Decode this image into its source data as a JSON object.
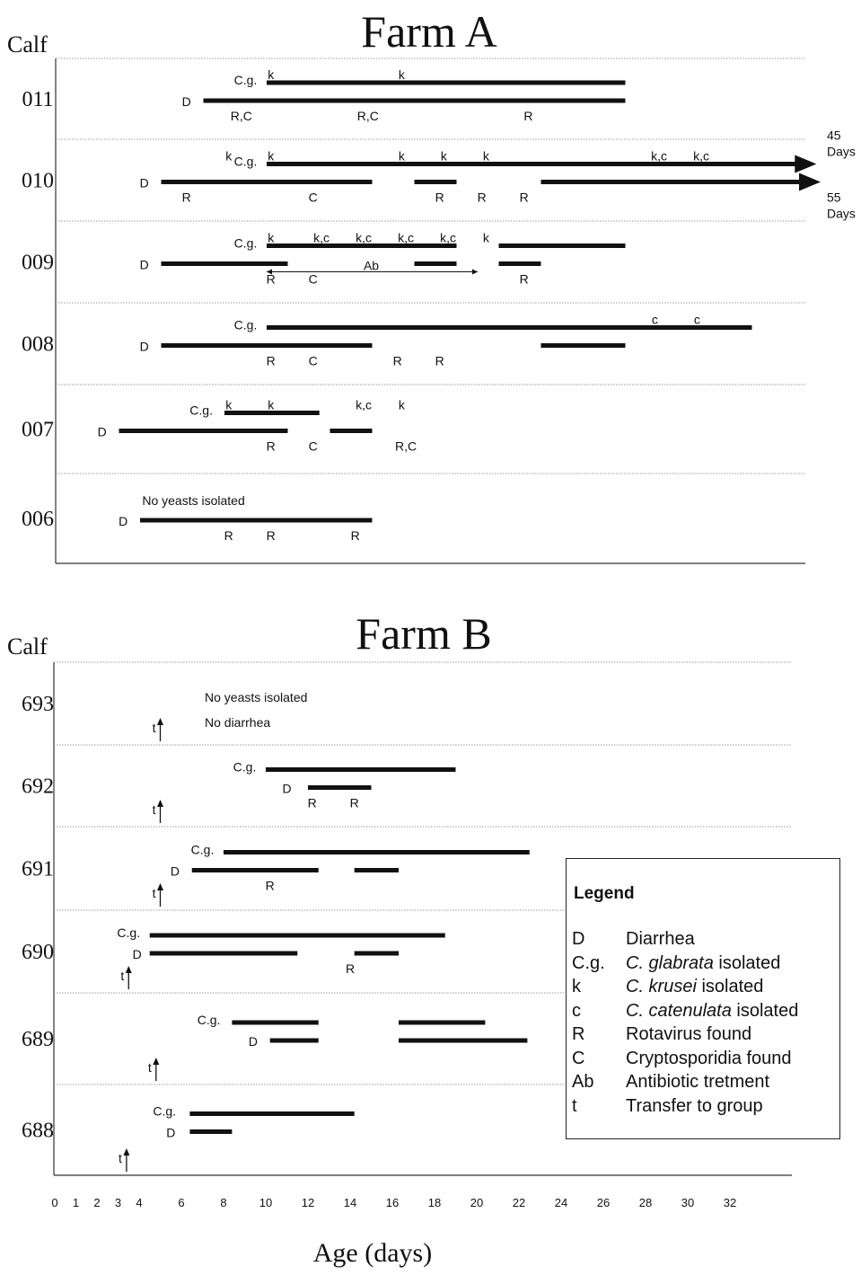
{
  "chart_data": [
    {
      "type": "timeline",
      "title": "Farm A",
      "row_axis_label": "Calf",
      "xlabel": "Age (days)",
      "calves": [
        {
          "id": "011",
          "bars": [
            {
              "series": "C.g.",
              "start": 10,
              "end": 27
            },
            {
              "series": "D",
              "start": 7,
              "end": 27
            }
          ],
          "labels": [
            {
              "text": "C.g.",
              "x": 9.0,
              "lane": "cg-label"
            },
            {
              "text": "D",
              "x": 6.2,
              "lane": "d-label"
            },
            {
              "text": "k",
              "x": 10.2,
              "lane": "top"
            },
            {
              "text": "k",
              "x": 16.4,
              "lane": "top"
            },
            {
              "text": "R,C",
              "x": 8.8,
              "lane": "bottom"
            },
            {
              "text": "R,C",
              "x": 14.8,
              "lane": "bottom"
            },
            {
              "text": "R",
              "x": 22.4,
              "lane": "bottom"
            }
          ]
        },
        {
          "id": "010",
          "bars": [
            {
              "series": "C.g.",
              "start": 10,
              "end": 35.8,
              "arrow": true
            },
            {
              "series": "D",
              "start": 5,
              "end": 15
            },
            {
              "series": "D",
              "start": 17,
              "end": 19
            },
            {
              "series": "D",
              "start": 23,
              "end": 36,
              "arrow": true
            }
          ],
          "labels": [
            {
              "text": "C.g.",
              "x": 9.0,
              "lane": "cg-label"
            },
            {
              "text": "D",
              "x": 4.2,
              "lane": "d-label"
            },
            {
              "text": "k",
              "x": 8.2,
              "lane": "top"
            },
            {
              "text": "k",
              "x": 10.2,
              "lane": "top"
            },
            {
              "text": "k",
              "x": 16.4,
              "lane": "top"
            },
            {
              "text": "k",
              "x": 18.4,
              "lane": "top"
            },
            {
              "text": "k",
              "x": 20.4,
              "lane": "top"
            },
            {
              "text": "k,c",
              "x": 28.6,
              "lane": "top"
            },
            {
              "text": "k,c",
              "x": 30.6,
              "lane": "top"
            },
            {
              "text": "R",
              "x": 6.2,
              "lane": "bottom"
            },
            {
              "text": "C",
              "x": 12.2,
              "lane": "bottom"
            },
            {
              "text": "R",
              "x": 18.2,
              "lane": "bottom"
            },
            {
              "text": "R",
              "x": 20.2,
              "lane": "bottom"
            },
            {
              "text": "R",
              "x": 22.2,
              "lane": "bottom"
            }
          ],
          "end_notes": [
            {
              "value": "45",
              "unit": "Days",
              "lane": "cg"
            },
            {
              "value": "55",
              "unit": "Days",
              "lane": "d"
            }
          ]
        },
        {
          "id": "009",
          "bars": [
            {
              "series": "C.g.",
              "start": 10,
              "end": 19
            },
            {
              "series": "C.g.",
              "start": 21,
              "end": 27
            },
            {
              "series": "D",
              "start": 5,
              "end": 11
            },
            {
              "series": "D",
              "start": 17,
              "end": 19
            },
            {
              "series": "D",
              "start": 21,
              "end": 23
            }
          ],
          "antibiotic": {
            "label": "Ab",
            "start": 10,
            "end": 20
          },
          "labels": [
            {
              "text": "C.g.",
              "x": 9.0,
              "lane": "cg-label"
            },
            {
              "text": "D",
              "x": 4.2,
              "lane": "d-label"
            },
            {
              "text": "k",
              "x": 10.2,
              "lane": "top"
            },
            {
              "text": "k,c",
              "x": 12.6,
              "lane": "top"
            },
            {
              "text": "k,c",
              "x": 14.6,
              "lane": "top"
            },
            {
              "text": "k,c",
              "x": 16.6,
              "lane": "top"
            },
            {
              "text": "k,c",
              "x": 18.6,
              "lane": "top"
            },
            {
              "text": "k",
              "x": 20.4,
              "lane": "top"
            },
            {
              "text": "R",
              "x": 10.2,
              "lane": "bottom"
            },
            {
              "text": "C",
              "x": 12.2,
              "lane": "bottom"
            },
            {
              "text": "R",
              "x": 22.2,
              "lane": "bottom"
            }
          ]
        },
        {
          "id": "008",
          "bars": [
            {
              "series": "C.g.",
              "start": 10,
              "end": 33
            },
            {
              "series": "D",
              "start": 5,
              "end": 15
            },
            {
              "series": "D",
              "start": 23,
              "end": 27
            }
          ],
          "labels": [
            {
              "text": "C.g.",
              "x": 9.0,
              "lane": "cg-label"
            },
            {
              "text": "D",
              "x": 4.2,
              "lane": "d-label"
            },
            {
              "text": "c",
              "x": 28.4,
              "lane": "top"
            },
            {
              "text": "c",
              "x": 30.4,
              "lane": "top"
            },
            {
              "text": "R",
              "x": 10.2,
              "lane": "bottom"
            },
            {
              "text": "C",
              "x": 12.2,
              "lane": "bottom"
            },
            {
              "text": "R",
              "x": 16.2,
              "lane": "bottom"
            },
            {
              "text": "R",
              "x": 18.2,
              "lane": "bottom"
            }
          ]
        },
        {
          "id": "007",
          "bars": [
            {
              "series": "C.g.",
              "start": 8,
              "end": 12.5
            },
            {
              "series": "D",
              "start": 3,
              "end": 11
            },
            {
              "series": "D",
              "start": 13,
              "end": 15
            }
          ],
          "labels": [
            {
              "text": "C.g.",
              "x": 6.9,
              "lane": "cg-label"
            },
            {
              "text": "D",
              "x": 2.2,
              "lane": "d-label"
            },
            {
              "text": "k",
              "x": 8.2,
              "lane": "top"
            },
            {
              "text": "k",
              "x": 10.2,
              "lane": "top"
            },
            {
              "text": "k,c",
              "x": 14.6,
              "lane": "top"
            },
            {
              "text": "k",
              "x": 16.4,
              "lane": "top"
            },
            {
              "text": "R",
              "x": 10.2,
              "lane": "bottom"
            },
            {
              "text": "C",
              "x": 12.2,
              "lane": "bottom"
            },
            {
              "text": "R,C",
              "x": 16.6,
              "lane": "bottom"
            }
          ]
        },
        {
          "id": "006",
          "bars": [
            {
              "series": "D",
              "start": 4,
              "end": 15
            }
          ],
          "labels": [
            {
              "text": "No yeasts isolated",
              "x": 4.1,
              "lane": "cg-label-left"
            },
            {
              "text": "D",
              "x": 3.2,
              "lane": "d-label"
            },
            {
              "text": "R",
              "x": 8.2,
              "lane": "bottom"
            },
            {
              "text": "R",
              "x": 10.2,
              "lane": "bottom"
            },
            {
              "text": "R",
              "x": 14.2,
              "lane": "bottom"
            }
          ]
        }
      ]
    },
    {
      "type": "timeline",
      "title": "Farm B",
      "row_axis_label": "Calf",
      "xlabel": "Age (days)",
      "x_ticks": [
        0,
        1,
        2,
        3,
        4,
        6,
        8,
        10,
        12,
        14,
        16,
        18,
        20,
        22,
        24,
        26,
        28,
        30,
        32
      ],
      "calves": [
        {
          "id": "693",
          "bars": [],
          "transfer": 5,
          "notes": [
            "No yeasts isolated",
            "No diarrhea"
          ]
        },
        {
          "id": "692",
          "bars": [
            {
              "series": "C.g.",
              "start": 10,
              "end": 19
            },
            {
              "series": "D",
              "start": 12,
              "end": 15
            }
          ],
          "transfer": 5,
          "labels": [
            {
              "text": "C.g.",
              "x": 9.0,
              "lane": "cg-label"
            },
            {
              "text": "D",
              "x": 11.0,
              "lane": "d-label"
            },
            {
              "text": "R",
              "x": 12.2,
              "lane": "bottom"
            },
            {
              "text": "R",
              "x": 14.2,
              "lane": "bottom"
            }
          ]
        },
        {
          "id": "691",
          "bars": [
            {
              "series": "C.g.",
              "start": 8,
              "end": 22.5
            },
            {
              "series": "D",
              "start": 6.5,
              "end": 12.5
            },
            {
              "series": "D",
              "start": 14.2,
              "end": 16.3
            }
          ],
          "transfer": 5,
          "labels": [
            {
              "text": "C.g.",
              "x": 7.0,
              "lane": "cg-label"
            },
            {
              "text": "D",
              "x": 5.7,
              "lane": "d-label"
            },
            {
              "text": "R",
              "x": 10.2,
              "lane": "bottom"
            }
          ]
        },
        {
          "id": "690",
          "bars": [
            {
              "series": "C.g.",
              "start": 4.5,
              "end": 18.5
            },
            {
              "series": "D",
              "start": 4.5,
              "end": 11.5
            },
            {
              "series": "D",
              "start": 14.2,
              "end": 16.3
            }
          ],
          "transfer": 3.5,
          "labels": [
            {
              "text": "C.g.",
              "x": 3.5,
              "lane": "cg-label"
            },
            {
              "text": "D",
              "x": 3.9,
              "lane": "d-label"
            },
            {
              "text": "R",
              "x": 14.0,
              "lane": "bottom"
            }
          ]
        },
        {
          "id": "689",
          "bars": [
            {
              "series": "C.g.",
              "start": 8.4,
              "end": 12.5
            },
            {
              "series": "C.g.",
              "start": 16.3,
              "end": 20.4
            },
            {
              "series": "D",
              "start": 10.2,
              "end": 12.5
            },
            {
              "series": "D",
              "start": 16.3,
              "end": 22.4
            }
          ],
          "transfer": 4.8,
          "labels": [
            {
              "text": "C.g.",
              "x": 7.3,
              "lane": "cg-label"
            },
            {
              "text": "D",
              "x": 9.4,
              "lane": "d-label"
            }
          ]
        },
        {
          "id": "688",
          "bars": [
            {
              "series": "C.g.",
              "start": 6.4,
              "end": 14.2
            },
            {
              "series": "D",
              "start": 6.4,
              "end": 8.4
            }
          ],
          "transfer": 3.4,
          "labels": [
            {
              "text": "C.g.",
              "x": 5.2,
              "lane": "cg-label"
            },
            {
              "text": "D",
              "x": 5.5,
              "lane": "d-label"
            }
          ]
        }
      ]
    }
  ],
  "legend": {
    "title": "Legend",
    "items": [
      {
        "key": "D",
        "desc": "Diarrhea"
      },
      {
        "key": "C.g.",
        "desc_italic": "C. glabrata",
        "desc": "isolated"
      },
      {
        "key": "k",
        "desc_italic": "C. krusei",
        "desc": "isolated"
      },
      {
        "key": "c",
        "desc_italic": "C. catenulata",
        "desc": "isolated"
      },
      {
        "key": "R",
        "desc": "Rotavirus found"
      },
      {
        "key": "C",
        "desc": "Cryptosporidia found"
      },
      {
        "key": "Ab",
        "desc": "Antibiotic tretment"
      },
      {
        "key": "t",
        "desc": "Transfer to group"
      }
    ]
  },
  "colors": {
    "bar": "#111111",
    "gridline": "#9a9a9a",
    "text": "#111111"
  }
}
